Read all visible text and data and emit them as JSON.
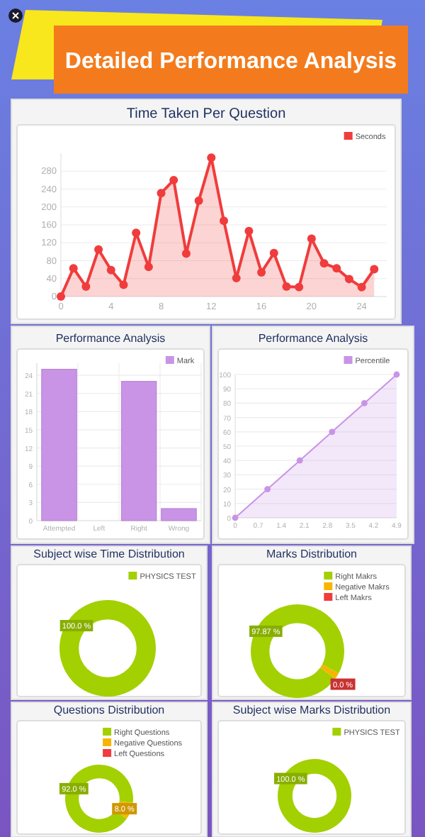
{
  "chart_data": [
    {
      "type": "other",
      "title": "Detailed Performance Analysis"
    },
    {
      "type": "area",
      "title": "Time Taken Per Question",
      "x": [
        0,
        1,
        2,
        3,
        4,
        5,
        6,
        7,
        8,
        9,
        10,
        11,
        12,
        13,
        14,
        15,
        16,
        17,
        18,
        19,
        20,
        21,
        22,
        23,
        24,
        25
      ],
      "series": [
        {
          "name": "Seconds",
          "color": "#f03c3c",
          "values": [
            0,
            63,
            22,
            105,
            59,
            26,
            142,
            66,
            231,
            260,
            96,
            214,
            310,
            169,
            41,
            146,
            54,
            97,
            22,
            21,
            129,
            74,
            63,
            39,
            21,
            61
          ]
        }
      ],
      "xlim": [
        0,
        26
      ],
      "xticks": [
        0,
        4,
        8,
        12,
        16,
        20,
        24
      ],
      "ylim": [
        0,
        320
      ],
      "yticks": [
        0,
        40,
        80,
        120,
        160,
        200,
        240,
        280
      ],
      "grid": "y",
      "legend": "top right",
      "marker": "circle",
      "line_style": "solid"
    },
    {
      "type": "bar",
      "title": "Performance Analysis",
      "categories": [
        "Attempted",
        "Left",
        "Right",
        "Wrong"
      ],
      "series": [
        {
          "name": "Mark",
          "color": "#c993e6",
          "values": [
            25,
            0,
            23,
            2
          ]
        }
      ],
      "ylim": [
        0,
        26
      ],
      "yticks": [
        0,
        3,
        6,
        9,
        12,
        15,
        18,
        21,
        24
      ],
      "grid": true,
      "legend": "top right"
    },
    {
      "type": "area",
      "title": "Performance Analysis",
      "x": [
        0,
        0.98,
        1.96,
        2.94,
        3.92,
        4.9
      ],
      "series": [
        {
          "name": "Percentile",
          "color": "#c993e6",
          "values": [
            0,
            20,
            40,
            60,
            80,
            100
          ]
        }
      ],
      "xlim": [
        0,
        4.9
      ],
      "xticks": [
        0,
        0.7,
        1.4,
        2.1,
        2.8,
        3.5,
        4.2,
        4.9
      ],
      "ylim": [
        0,
        100
      ],
      "yticks": [
        0,
        10,
        20,
        30,
        40,
        50,
        60,
        70,
        80,
        90,
        100
      ],
      "grid": "y",
      "legend": "top right",
      "marker": "circle",
      "line_style": "solid"
    },
    {
      "type": "donut",
      "title": "Subject wise Time Distribution",
      "categories": [
        "PHYSICS TEST"
      ],
      "values": [
        100
      ],
      "colors": [
        "#a3d000"
      ],
      "value_labels": [
        "100.0 %"
      ],
      "legend": "top right"
    },
    {
      "type": "donut",
      "title": "Marks Distribution",
      "categories": [
        "Right Makrs",
        "Negative Makrs",
        "Left Makrs"
      ],
      "values": [
        97.87,
        2.13,
        0
      ],
      "colors": [
        "#a3d000",
        "#f7b500",
        "#f03c3c"
      ],
      "value_labels": [
        "97.87 %",
        null,
        "0.0 %"
      ],
      "legend": "top right"
    },
    {
      "type": "donut",
      "title": "Questions Distribution",
      "categories": [
        "Right Questions",
        "Negative Questions",
        "Left Questions"
      ],
      "values": [
        92,
        8,
        0
      ],
      "colors": [
        "#a3d000",
        "#f7b500",
        "#f03c3c"
      ],
      "value_labels": [
        "92.0 %",
        "8.0 %",
        null
      ],
      "legend": "top right"
    },
    {
      "type": "donut",
      "title": "Subject wise Marks Distribution",
      "categories": [
        "PHYSICS TEST"
      ],
      "values": [
        100
      ],
      "colors": [
        "#a3d000"
      ],
      "value_labels": [
        "100.0 %"
      ],
      "legend": "top right"
    }
  ]
}
